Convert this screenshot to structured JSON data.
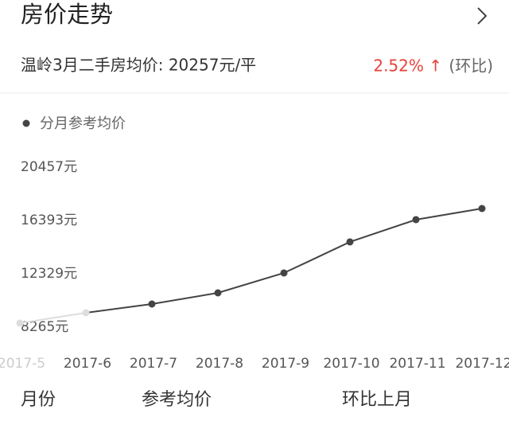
{
  "header": {
    "title": "房价走势",
    "summary": "温岭3月二手房均价: 20257元/平",
    "change": "2.52% ↑",
    "change_note": "(环比)"
  },
  "chart_data": {
    "type": "line",
    "categories": [
      "2017-5",
      "2017-6",
      "2017-7",
      "2017-8",
      "2017-9",
      "2017-10",
      "2017-11",
      "2017-12"
    ],
    "series": [
      {
        "name": "分月参考均价",
        "color": "#444444",
        "values": [
          8568,
          9357,
          10024,
          10873,
          12390,
          14756,
          16454,
          17303
        ]
      }
    ],
    "ylim": [
      8265,
      20457
    ],
    "yticks": [
      {
        "value": 8265,
        "label": "8265元"
      },
      {
        "value": 12329,
        "label": "12329元"
      },
      {
        "value": 16393,
        "label": "16393元"
      },
      {
        "value": 20457,
        "label": "20457元"
      }
    ],
    "grid": false
  },
  "table": {
    "columns": [
      "月份",
      "参考均价",
      "环比上月"
    ]
  }
}
